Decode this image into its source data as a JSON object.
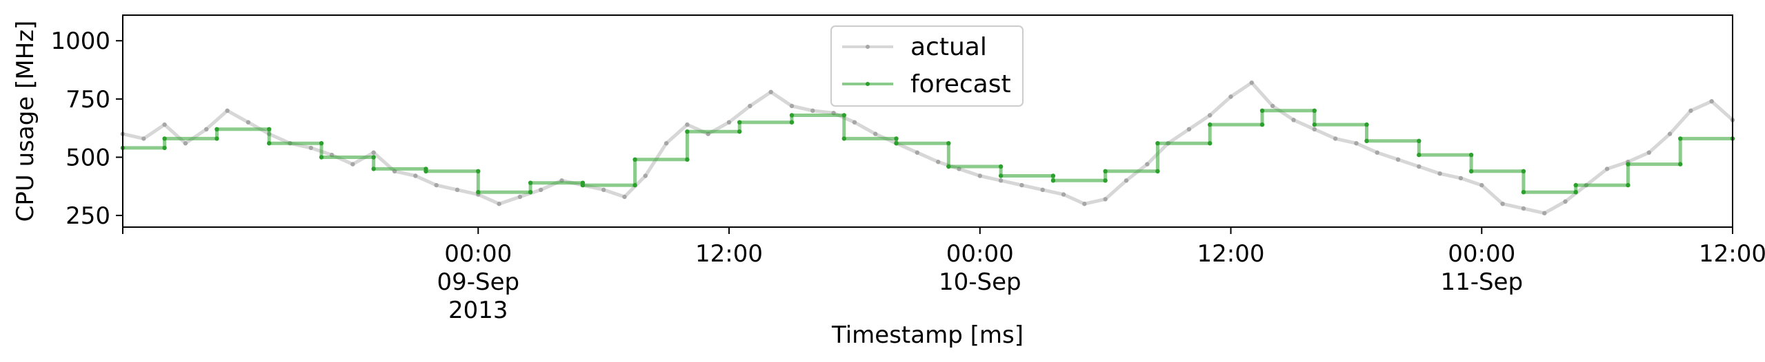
{
  "chart_data": {
    "type": "line",
    "xlabel": "Timestamp [ms]",
    "ylabel": "CPU usage [MHz]",
    "xlim": [
      "2013-09-08T07:00",
      "2013-09-11T12:00"
    ],
    "ylim": [
      200,
      1110
    ],
    "yticks": [
      250,
      500,
      750,
      1000
    ],
    "xticks": [
      {
        "x": "2013-09-09T00:00",
        "lines": [
          "00:00",
          "09-Sep",
          "2013"
        ]
      },
      {
        "x": "2013-09-09T12:00",
        "lines": [
          "12:00"
        ]
      },
      {
        "x": "2013-09-10T00:00",
        "lines": [
          "00:00",
          "10-Sep"
        ]
      },
      {
        "x": "2013-09-10T12:00",
        "lines": [
          "12:00"
        ]
      },
      {
        "x": "2013-09-11T00:00",
        "lines": [
          "00:00",
          "11-Sep"
        ]
      },
      {
        "x": "2013-09-11T12:00",
        "lines": [
          "12:00"
        ]
      }
    ],
    "legend": {
      "position": "top-center"
    },
    "series": [
      {
        "name": "actual",
        "color": "#a6a6a6",
        "x": [
          "2013-09-08T07:00",
          "2013-09-08T08:00",
          "2013-09-08T09:00",
          "2013-09-08T10:00",
          "2013-09-08T11:00",
          "2013-09-08T12:00",
          "2013-09-08T13:00",
          "2013-09-08T14:00",
          "2013-09-08T15:00",
          "2013-09-08T16:00",
          "2013-09-08T17:00",
          "2013-09-08T18:00",
          "2013-09-08T19:00",
          "2013-09-08T20:00",
          "2013-09-08T21:00",
          "2013-09-08T22:00",
          "2013-09-08T23:00",
          "2013-09-09T00:00",
          "2013-09-09T01:00",
          "2013-09-09T02:00",
          "2013-09-09T03:00",
          "2013-09-09T04:00",
          "2013-09-09T05:00",
          "2013-09-09T06:00",
          "2013-09-09T07:00",
          "2013-09-09T08:00",
          "2013-09-09T09:00",
          "2013-09-09T10:00",
          "2013-09-09T11:00",
          "2013-09-09T12:00",
          "2013-09-09T13:00",
          "2013-09-09T14:00",
          "2013-09-09T15:00",
          "2013-09-09T16:00",
          "2013-09-09T17:00",
          "2013-09-09T18:00",
          "2013-09-09T19:00",
          "2013-09-09T20:00",
          "2013-09-09T21:00",
          "2013-09-09T22:00",
          "2013-09-09T23:00",
          "2013-09-10T00:00",
          "2013-09-10T01:00",
          "2013-09-10T02:00",
          "2013-09-10T03:00",
          "2013-09-10T04:00",
          "2013-09-10T05:00",
          "2013-09-10T06:00",
          "2013-09-10T07:00",
          "2013-09-10T08:00",
          "2013-09-10T09:00",
          "2013-09-10T10:00",
          "2013-09-10T11:00",
          "2013-09-10T12:00",
          "2013-09-10T13:00",
          "2013-09-10T14:00",
          "2013-09-10T15:00",
          "2013-09-10T16:00",
          "2013-09-10T17:00",
          "2013-09-10T18:00",
          "2013-09-10T19:00",
          "2013-09-10T20:00",
          "2013-09-10T21:00",
          "2013-09-10T22:00",
          "2013-09-10T23:00",
          "2013-09-11T00:00",
          "2013-09-11T01:00",
          "2013-09-11T02:00",
          "2013-09-11T03:00",
          "2013-09-11T04:00",
          "2013-09-11T05:00",
          "2013-09-11T06:00",
          "2013-09-11T07:00",
          "2013-09-11T08:00",
          "2013-09-11T09:00",
          "2013-09-11T10:00",
          "2013-09-11T11:00",
          "2013-09-11T12:00"
        ],
        "values": [
          600,
          580,
          640,
          560,
          620,
          700,
          650,
          600,
          560,
          540,
          510,
          470,
          520,
          440,
          420,
          380,
          360,
          340,
          300,
          330,
          360,
          400,
          380,
          360,
          330,
          420,
          560,
          640,
          600,
          650,
          720,
          780,
          720,
          700,
          690,
          650,
          600,
          560,
          520,
          480,
          450,
          420,
          400,
          380,
          360,
          340,
          300,
          320,
          400,
          470,
          560,
          620,
          680,
          760,
          820,
          720,
          660,
          620,
          580,
          560,
          520,
          490,
          460,
          430,
          410,
          380,
          300,
          280,
          260,
          310,
          380,
          450,
          480,
          520,
          600,
          700,
          740,
          660
        ]
      },
      {
        "name": "forecast",
        "color": "#2ca02c",
        "x": [
          "2013-09-08T07:00",
          "2013-09-08T09:00",
          "2013-09-08T09:00",
          "2013-09-08T11:30",
          "2013-09-08T11:30",
          "2013-09-08T14:00",
          "2013-09-08T14:00",
          "2013-09-08T16:30",
          "2013-09-08T16:30",
          "2013-09-08T19:00",
          "2013-09-08T19:00",
          "2013-09-08T21:30",
          "2013-09-08T21:30",
          "2013-09-09T00:00",
          "2013-09-09T00:00",
          "2013-09-09T02:30",
          "2013-09-09T02:30",
          "2013-09-09T05:00",
          "2013-09-09T05:00",
          "2013-09-09T07:30",
          "2013-09-09T07:30",
          "2013-09-09T10:00",
          "2013-09-09T10:00",
          "2013-09-09T12:30",
          "2013-09-09T12:30",
          "2013-09-09T15:00",
          "2013-09-09T15:00",
          "2013-09-09T17:30",
          "2013-09-09T17:30",
          "2013-09-09T20:00",
          "2013-09-09T20:00",
          "2013-09-09T22:30",
          "2013-09-09T22:30",
          "2013-09-10T01:00",
          "2013-09-10T01:00",
          "2013-09-10T03:30",
          "2013-09-10T03:30",
          "2013-09-10T06:00",
          "2013-09-10T06:00",
          "2013-09-10T08:30",
          "2013-09-10T08:30",
          "2013-09-10T11:00",
          "2013-09-10T11:00",
          "2013-09-10T13:30",
          "2013-09-10T13:30",
          "2013-09-10T16:00",
          "2013-09-10T16:00",
          "2013-09-10T18:30",
          "2013-09-10T18:30",
          "2013-09-10T21:00",
          "2013-09-10T21:00",
          "2013-09-10T23:30",
          "2013-09-10T23:30",
          "2013-09-11T02:00",
          "2013-09-11T02:00",
          "2013-09-11T04:30",
          "2013-09-11T04:30",
          "2013-09-11T07:00",
          "2013-09-11T07:00",
          "2013-09-11T09:30",
          "2013-09-11T09:30",
          "2013-09-11T12:00"
        ],
        "values": [
          540,
          540,
          580,
          580,
          620,
          620,
          560,
          560,
          500,
          500,
          450,
          450,
          440,
          440,
          350,
          350,
          390,
          390,
          380,
          380,
          490,
          490,
          610,
          610,
          650,
          650,
          680,
          680,
          580,
          580,
          560,
          560,
          460,
          460,
          420,
          420,
          400,
          400,
          440,
          440,
          560,
          560,
          640,
          640,
          700,
          700,
          640,
          640,
          570,
          570,
          510,
          510,
          440,
          440,
          350,
          350,
          380,
          380,
          470,
          470,
          580,
          580
        ]
      }
    ]
  }
}
